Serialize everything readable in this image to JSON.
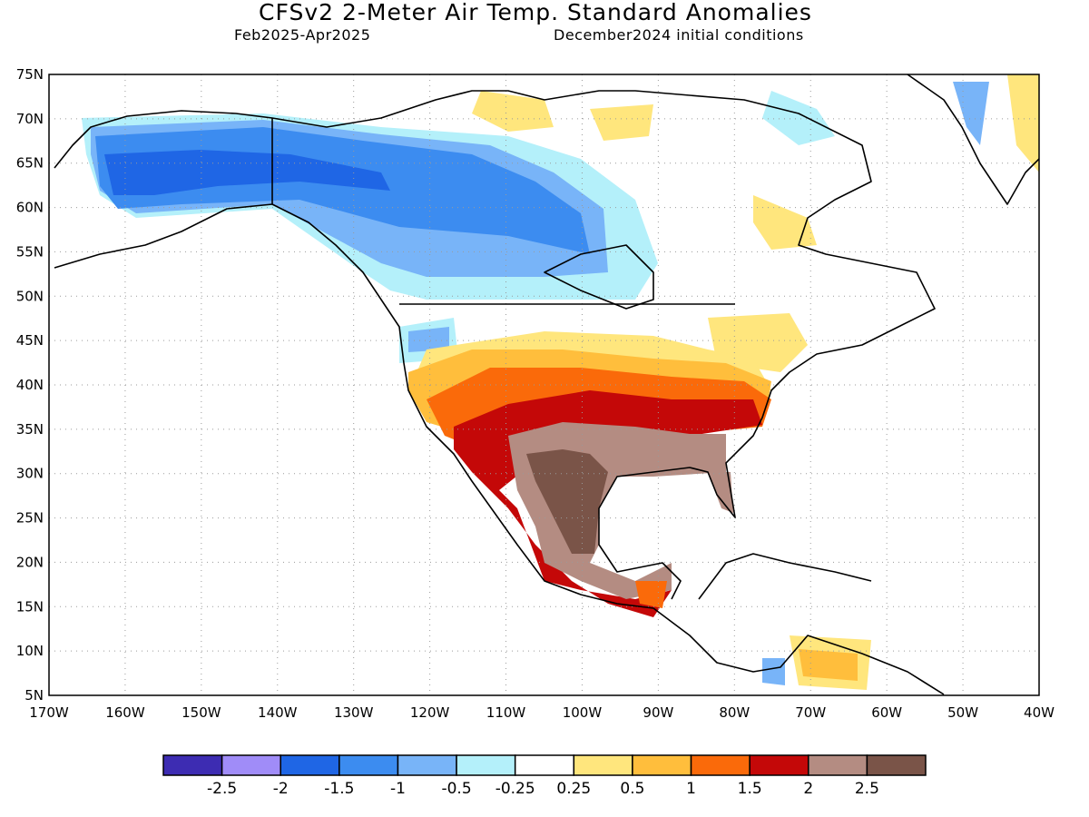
{
  "header": {
    "title": "CFSv2 2-Meter Air Temp. Standard Anomalies",
    "period": "Feb2025-Apr2025",
    "init": "December2024 initial conditions"
  },
  "axes": {
    "lat_labels": [
      "75N",
      "70N",
      "65N",
      "60N",
      "55N",
      "50N",
      "45N",
      "40N",
      "35N",
      "30N",
      "25N",
      "20N",
      "15N",
      "10N",
      "5N"
    ],
    "lon_labels": [
      "170W",
      "160W",
      "150W",
      "140W",
      "130W",
      "120W",
      "110W",
      "100W",
      "90W",
      "80W",
      "70W",
      "60W",
      "50W",
      "40W"
    ],
    "lat_range": [
      5,
      75
    ],
    "lon_range": [
      -170,
      -40
    ],
    "grid": "dotted"
  },
  "colorbar": {
    "colors": [
      "#3d2cb2",
      "#a08cf8",
      "#1f66e5",
      "#3c8cf0",
      "#78b4f8",
      "#b4f0fa",
      "#ffffff",
      "#ffe67d",
      "#ffbe3c",
      "#fa6a0a",
      "#c40808",
      "#b48c82",
      "#7a5448"
    ],
    "tick_labels": [
      "-2.5",
      "-2",
      "-1.5",
      "-1",
      "-0.5",
      "-0.25",
      "0.25",
      "0.5",
      "1",
      "1.5",
      "2",
      "2.5"
    ]
  },
  "map_data": {
    "type": "anomaly-map",
    "region": "North America",
    "variable": "2-meter air temperature standard anomaly",
    "features": [
      {
        "area": "Alaska",
        "category": "-1.5"
      },
      {
        "area": "Western Canada",
        "category": "-1"
      },
      {
        "area": "Canadian Prairies",
        "category": "-0.5"
      },
      {
        "area": "Pacific Northwest",
        "category": "-0.5"
      },
      {
        "area": "Northern US Plains",
        "category": "0.25"
      },
      {
        "area": "Central US",
        "category": "1"
      },
      {
        "area": "Southern Plains",
        "category": "1.5"
      },
      {
        "area": "Southern tier US",
        "category": "2"
      },
      {
        "area": "Texas / Gulf Coast",
        "category": "2.5"
      },
      {
        "area": "Northern Mexico",
        "category": "2.5"
      },
      {
        "area": "Northeast US",
        "category": "0.5"
      },
      {
        "area": "Caribbean / northern South America",
        "category": "0.5"
      }
    ]
  }
}
